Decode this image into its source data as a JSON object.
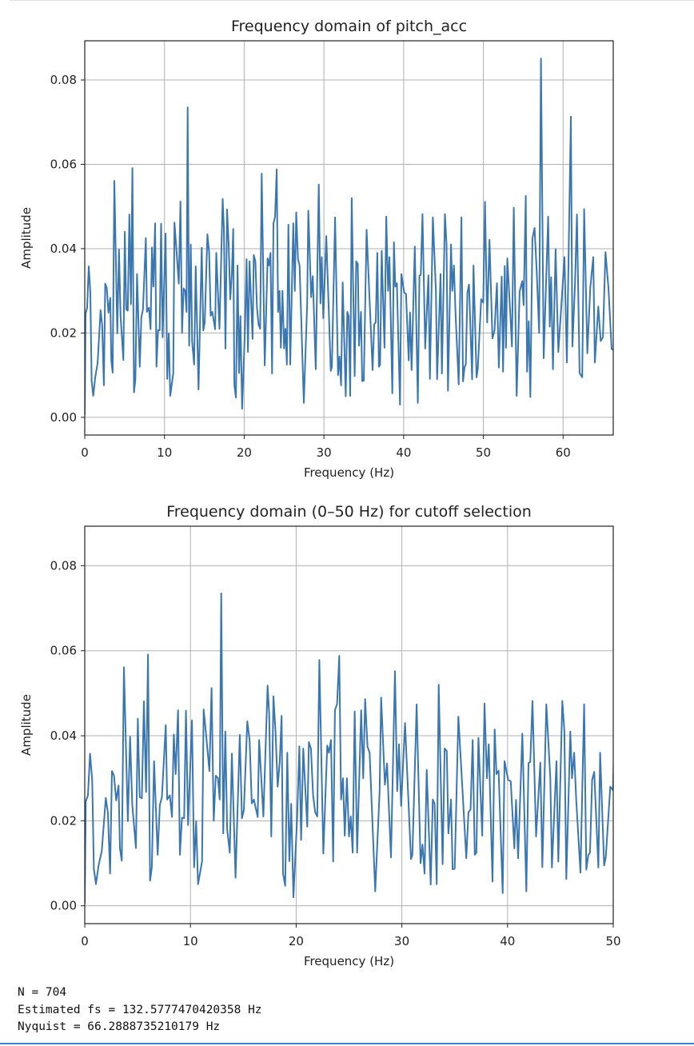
{
  "chart_data": [
    {
      "type": "line",
      "title": "Frequency domain of pitch_acc",
      "xlabel": "Frequency (Hz)",
      "ylabel": "Amplitude",
      "xlim": [
        0,
        66.29
      ],
      "ylim": [
        -0.0042,
        0.0893
      ],
      "xticks": [
        0,
        10,
        20,
        30,
        40,
        50,
        60
      ],
      "yticks": [
        0.0,
        0.02,
        0.04,
        0.06,
        0.08
      ],
      "grid": true,
      "color": "#3a76b0",
      "source": "spectrum"
    },
    {
      "type": "line",
      "title": "Frequency domain (0–50 Hz) for cutoff selection",
      "xlabel": "Frequency (Hz)",
      "ylabel": "Amplitude",
      "xlim": [
        0,
        50
      ],
      "ylim": [
        -0.0042,
        0.0893
      ],
      "xticks": [
        0,
        10,
        20,
        30,
        40,
        50
      ],
      "yticks": [
        0.0,
        0.02,
        0.04,
        0.06,
        0.08
      ],
      "grid": true,
      "color": "#3a76b0",
      "source": "spectrum"
    }
  ],
  "spectrum": [
    [
      0,
      0.0006
    ],
    [
      0.1,
      0.0246
    ],
    [
      0.3,
      0.026
    ],
    [
      0.5,
      0.0358
    ],
    [
      0.7,
      0.0296
    ],
    [
      0.86,
      0.0087
    ],
    [
      1.06,
      0.0051
    ],
    [
      1.31,
      0.0095
    ],
    [
      1.61,
      0.0129
    ],
    [
      1.99,
      0.0254
    ],
    [
      2.19,
      0.0218
    ],
    [
      2.4,
      0.0076
    ],
    [
      2.57,
      0.0317
    ],
    [
      2.77,
      0.0306
    ],
    [
      2.97,
      0.0248
    ],
    [
      3.2,
      0.0283
    ],
    [
      3.33,
      0.0135
    ],
    [
      3.5,
      0.0106
    ],
    [
      3.71,
      0.0561
    ],
    [
      4.08,
      0.0199
    ],
    [
      4.29,
      0.0398
    ],
    [
      4.49,
      0.0239
    ],
    [
      4.84,
      0.0136
    ],
    [
      5.02,
      0.044
    ],
    [
      5.2,
      0.0256
    ],
    [
      5.4,
      0.0253
    ],
    [
      5.6,
      0.0481
    ],
    [
      5.8,
      0.0268
    ],
    [
      5.98,
      0.0591
    ],
    [
      6.18,
      0.0059
    ],
    [
      6.35,
      0.009
    ],
    [
      6.56,
      0.034
    ],
    [
      6.9,
      0.012
    ],
    [
      7.1,
      0.0237
    ],
    [
      7.3,
      0.0256
    ],
    [
      7.66,
      0.0425
    ],
    [
      7.8,
      0.025
    ],
    [
      8.05,
      0.026
    ],
    [
      8.25,
      0.0209
    ],
    [
      8.43,
      0.0403
    ],
    [
      8.6,
      0.031
    ],
    [
      8.83,
      0.046
    ],
    [
      9.0,
      0.012
    ],
    [
      9.2,
      0.0207
    ],
    [
      9.4,
      0.0206
    ],
    [
      9.58,
      0.0459
    ],
    [
      9.77,
      0.019
    ],
    [
      10.14,
      0.0436
    ],
    [
      10.35,
      0.0091
    ],
    [
      10.54,
      0.0199
    ],
    [
      10.72,
      0.0051
    ],
    [
      11.1,
      0.0104
    ],
    [
      11.25,
      0.0462
    ],
    [
      11.45,
      0.041
    ],
    [
      11.79,
      0.0317
    ],
    [
      12.0,
      0.0512
    ],
    [
      12.2,
      0.02
    ],
    [
      12.4,
      0.0306
    ],
    [
      12.6,
      0.03
    ],
    [
      12.77,
      0.025
    ],
    [
      12.91,
      0.0735
    ],
    [
      13.1,
      0.017
    ],
    [
      13.3,
      0.041
    ],
    [
      13.47,
      0.018
    ],
    [
      13.72,
      0.0125
    ],
    [
      13.92,
      0.0358
    ],
    [
      14.27,
      0.0066
    ],
    [
      14.67,
      0.0402
    ],
    [
      14.87,
      0.0206
    ],
    [
      15.05,
      0.0225
    ],
    [
      15.38,
      0.0434
    ],
    [
      15.6,
      0.039
    ],
    [
      15.8,
      0.0241
    ],
    [
      16.0,
      0.025
    ],
    [
      16.36,
      0.0209
    ],
    [
      16.5,
      0.039
    ],
    [
      16.7,
      0.03
    ],
    [
      16.9,
      0.021
    ],
    [
      17.3,
      0.0518
    ],
    [
      17.45,
      0.045
    ],
    [
      17.65,
      0.0163
    ],
    [
      17.85,
      0.0493
    ],
    [
      18.05,
      0.041
    ],
    [
      18.25,
      0.028
    ],
    [
      18.45,
      0.034
    ],
    [
      18.62,
      0.0447
    ],
    [
      18.76,
      0.0076
    ],
    [
      18.96,
      0.0047
    ],
    [
      19.16,
      0.036
    ],
    [
      19.36,
      0.0105
    ],
    [
      19.53,
      0.024
    ],
    [
      19.74,
      0.002
    ],
    [
      20.1,
      0.021
    ],
    [
      20.3,
      0.0375
    ],
    [
      20.47,
      0.0155
    ],
    [
      20.67,
      0.037
    ],
    [
      21.05,
      0.0186
    ],
    [
      21.2,
      0.0385
    ],
    [
      21.4,
      0.037
    ],
    [
      21.6,
      0.026
    ],
    [
      21.8,
      0.022
    ],
    [
      22.0,
      0.021
    ],
    [
      22.19,
      0.0578
    ],
    [
      22.57,
      0.0123
    ],
    [
      22.94,
      0.0377
    ],
    [
      23.1,
      0.036
    ],
    [
      23.3,
      0.039
    ],
    [
      23.5,
      0.0104
    ],
    [
      23.67,
      0.046
    ],
    [
      23.87,
      0.0475
    ],
    [
      24.08,
      0.0588
    ],
    [
      24.25,
      0.025
    ],
    [
      24.43,
      0.03
    ],
    [
      24.6,
      0.0165
    ],
    [
      24.8,
      0.03
    ],
    [
      25.0,
      0.0163
    ],
    [
      25.17,
      0.021
    ],
    [
      25.35,
      0.0125
    ],
    [
      25.54,
      0.0457
    ],
    [
      25.77,
      0.0125
    ],
    [
      26.15,
      0.046
    ],
    [
      26.35,
      0.03
    ],
    [
      26.53,
      0.0486
    ],
    [
      26.75,
      0.0375
    ],
    [
      26.95,
      0.036
    ],
    [
      27.48,
      0.0034
    ],
    [
      27.9,
      0.027
    ],
    [
      28.04,
      0.049
    ],
    [
      28.4,
      0.0285
    ],
    [
      28.6,
      0.0335
    ],
    [
      28.97,
      0.0114
    ],
    [
      29.35,
      0.0552
    ],
    [
      29.56,
      0.027
    ],
    [
      29.73,
      0.038
    ],
    [
      29.93,
      0.0235
    ],
    [
      30.3,
      0.043
    ],
    [
      30.86,
      0.011
    ],
    [
      31.0,
      0.012
    ],
    [
      31.4,
      0.0474
    ],
    [
      31.77,
      0.01
    ],
    [
      31.95,
      0.0144
    ],
    [
      32.15,
      0.0076
    ],
    [
      32.35,
      0.032
    ],
    [
      32.73,
      0.005
    ],
    [
      32.93,
      0.025
    ],
    [
      33.1,
      0.024
    ],
    [
      33.3,
      0.0051
    ],
    [
      33.49,
      0.052
    ],
    [
      33.86,
      0.0098
    ],
    [
      34.05,
      0.037
    ],
    [
      34.25,
      0.0364
    ],
    [
      34.4,
      0.017
    ],
    [
      34.65,
      0.025
    ],
    [
      34.8,
      0.0086
    ],
    [
      35.0,
      0.0087
    ],
    [
      35.35,
      0.0445
    ],
    [
      36.1,
      0.0112
    ],
    [
      36.3,
      0.022
    ],
    [
      36.5,
      0.0226
    ],
    [
      36.7,
      0.039
    ],
    [
      36.9,
      0.012
    ],
    [
      37.05,
      0.0125
    ],
    [
      37.25,
      0.0395
    ],
    [
      37.6,
      0.0165
    ],
    [
      37.82,
      0.0476
    ],
    [
      38.05,
      0.03
    ],
    [
      38.22,
      0.038
    ],
    [
      38.58,
      0.0057
    ],
    [
      38.78,
      0.0415
    ],
    [
      38.95,
      0.031
    ],
    [
      39.15,
      0.0318
    ],
    [
      39.54,
      0.003
    ],
    [
      39.71,
      0.034
    ],
    [
      40.06,
      0.0296
    ],
    [
      40.3,
      0.0293
    ],
    [
      40.64,
      0.0135
    ],
    [
      40.8,
      0.0249
    ],
    [
      41.0,
      0.0112
    ],
    [
      41.4,
      0.0405
    ],
    [
      41.78,
      0.0034
    ],
    [
      41.98,
      0.0336
    ],
    [
      42.15,
      0.0338
    ],
    [
      42.36,
      0.0482
    ],
    [
      42.7,
      0.0163
    ],
    [
      43.1,
      0.0337
    ],
    [
      43.29,
      0.0091
    ],
    [
      43.67,
      0.0474
    ],
    [
      44.05,
      0.03
    ],
    [
      44.2,
      0.009
    ],
    [
      44.63,
      0.034
    ],
    [
      44.8,
      0.0104
    ],
    [
      45.18,
      0.0482
    ],
    [
      45.38,
      0.041
    ],
    [
      45.56,
      0.0063
    ],
    [
      45.94,
      0.041
    ],
    [
      46.1,
      0.03
    ],
    [
      46.3,
      0.036
    ],
    [
      46.5,
      0.0249
    ],
    [
      46.9,
      0.0078
    ],
    [
      47.25,
      0.0474
    ],
    [
      47.45,
      0.0085
    ],
    [
      47.65,
      0.012
    ],
    [
      47.8,
      0.0125
    ],
    [
      48.0,
      0.0296
    ],
    [
      48.2,
      0.0315
    ],
    [
      48.59,
      0.009
    ],
    [
      48.76,
      0.036
    ],
    [
      49.14,
      0.0095
    ],
    [
      49.3,
      0.0115
    ],
    [
      49.72,
      0.028
    ],
    [
      49.98,
      0.0272
    ],
    [
      50.2,
      0.0511
    ],
    [
      50.47,
      0.0225
    ],
    [
      50.77,
      0.0421
    ],
    [
      51.14,
      0.0187
    ],
    [
      51.4,
      0.0206
    ],
    [
      51.7,
      0.0318
    ],
    [
      51.94,
      0.0118
    ],
    [
      52.3,
      0.0334
    ],
    [
      52.47,
      0.0108
    ],
    [
      52.68,
      0.0359
    ],
    [
      52.84,
      0.0165
    ],
    [
      53.0,
      0.0377
    ],
    [
      53.38,
      0.0244
    ],
    [
      53.58,
      0.0168
    ],
    [
      53.81,
      0.0497
    ],
    [
      54.18,
      0.0051
    ],
    [
      54.55,
      0.0298
    ],
    [
      54.88,
      0.0323
    ],
    [
      55.05,
      0.0266
    ],
    [
      55.32,
      0.0525
    ],
    [
      55.48,
      0.0108
    ],
    [
      55.69,
      0.0228
    ],
    [
      55.89,
      0.0048
    ],
    [
      56.15,
      0.0424
    ],
    [
      56.42,
      0.0449
    ],
    [
      56.69,
      0.0345
    ],
    [
      56.99,
      0.02
    ],
    [
      57.22,
      0.0851
    ],
    [
      57.56,
      0.014
    ],
    [
      58.13,
      0.0476
    ],
    [
      58.33,
      0.0215
    ],
    [
      58.5,
      0.0332
    ],
    [
      58.73,
      0.0114
    ],
    [
      59.06,
      0.0399
    ],
    [
      59.4,
      0.0155
    ],
    [
      60.17,
      0.038
    ],
    [
      60.47,
      0.013
    ],
    [
      60.97,
      0.0713
    ],
    [
      61.17,
      0.0168
    ],
    [
      61.5,
      0.0317
    ],
    [
      61.74,
      0.0481
    ],
    [
      62.07,
      0.0105
    ],
    [
      62.4,
      0.0095
    ],
    [
      62.64,
      0.0494
    ],
    [
      63.04,
      0.0152
    ],
    [
      63.41,
      0.0308
    ],
    [
      63.78,
      0.038
    ],
    [
      63.98,
      0.013
    ],
    [
      64.41,
      0.0263
    ],
    [
      64.72,
      0.0181
    ],
    [
      65.0,
      0.019
    ],
    [
      65.32,
      0.0392
    ],
    [
      65.69,
      0.0307
    ],
    [
      66.09,
      0.0162
    ],
    [
      66.29,
      0.016
    ]
  ],
  "output": {
    "line1": "N = 704",
    "line2": "Estimated fs = 132.5777470420358 Hz",
    "line3": "Nyquist = 66.2888735210179 Hz"
  }
}
